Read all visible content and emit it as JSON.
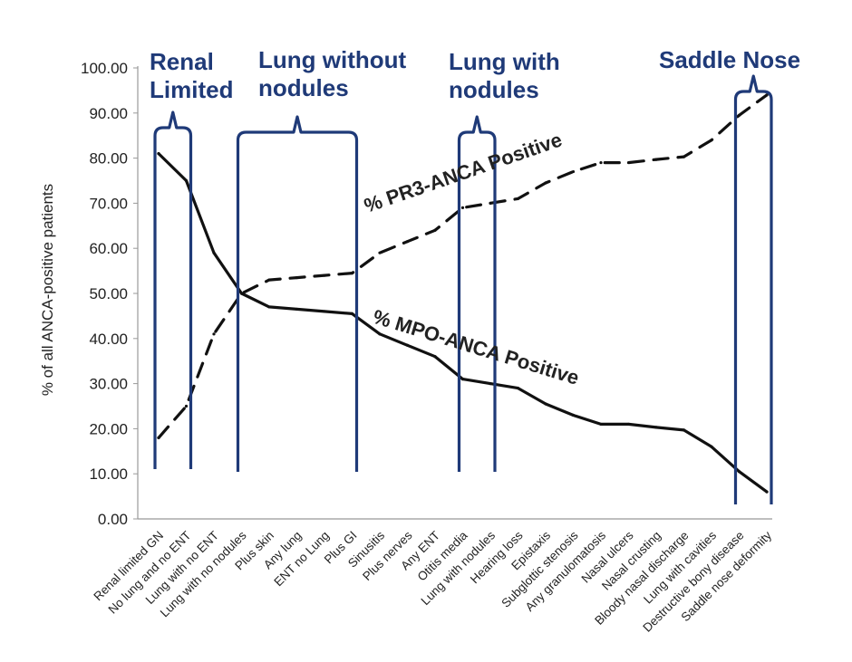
{
  "chart_data": {
    "type": "line",
    "ylabel": "% of all ANCA-positive patients",
    "ylim": [
      0,
      100
    ],
    "yticks": [
      "0.00",
      "10.00",
      "20.00",
      "30.00",
      "40.00",
      "50.00",
      "60.00",
      "70.00",
      "80.00",
      "90.00",
      "100.00"
    ],
    "categories": [
      "Renal limited GN",
      "No lung and no ENT",
      "Lung with no ENT",
      "Lung with no nodules",
      "Plus skin",
      "Any lung",
      "ENT no Lung",
      "Plus GI",
      "Sinusitis",
      "Plus nerves",
      "Any ENT",
      "Otitis media",
      "Lung with nodules",
      "Hearing loss",
      "Epistaxis",
      "Subglottic stenosis",
      "Any granulomatosis",
      "Nasal ulcers",
      "Nasal crusting",
      "Bloody nasal discharge",
      "Lung with cavities",
      "Destructive bony disease",
      "Saddle nose deformity"
    ],
    "series": [
      {
        "name": "% MPO-ANCA Positive",
        "style": "solid",
        "values": [
          81,
          75,
          59,
          50,
          47,
          46.5,
          46,
          45.5,
          41,
          38.5,
          36,
          31,
          30,
          29,
          25.5,
          23,
          21,
          21,
          20.3,
          19.7,
          16,
          10.5,
          6
        ]
      },
      {
        "name": "% PR3-ANCA Positive",
        "style": "dashed",
        "values": [
          18,
          25,
          41,
          50,
          53,
          53.5,
          54,
          54.5,
          59,
          61.5,
          64,
          69,
          70,
          71,
          74.5,
          77,
          79,
          79,
          79.7,
          80.3,
          84,
          89.5,
          94
        ]
      }
    ],
    "groups": [
      {
        "label_lines": [
          "Renal",
          "Limited"
        ],
        "from": 0,
        "to": 1
      },
      {
        "label_lines": [
          "Lung without",
          "nodules"
        ],
        "from": 3,
        "to": 7
      },
      {
        "label_lines": [
          "Lung with",
          "nodules"
        ],
        "from": 11,
        "to": 12
      },
      {
        "label_lines": [
          "Saddle Nose"
        ],
        "from": 21,
        "to": 22
      }
    ],
    "colors": {
      "line": "#111111",
      "bracket": "#1f3a78"
    },
    "legend": "none",
    "grid": false
  }
}
